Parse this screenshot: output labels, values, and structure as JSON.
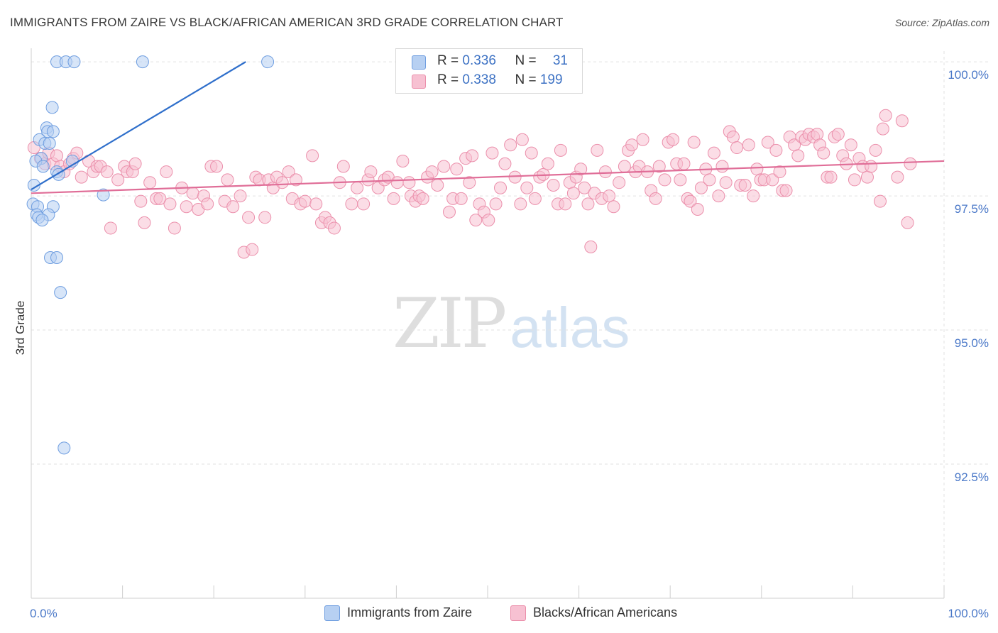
{
  "title": "IMMIGRANTS FROM ZAIRE VS BLACK/AFRICAN AMERICAN 3RD GRADE CORRELATION CHART",
  "source": "Source: ZipAtlas.com",
  "watermark": {
    "zip": "ZIP",
    "atlas": "atlas"
  },
  "colors": {
    "blue_fill": "#b7d0f2",
    "blue_stroke": "#6f9ee0",
    "blue_line": "#2f6fcb",
    "pink_fill": "#f7c1d2",
    "pink_stroke": "#eb8fab",
    "pink_line": "#e06e98",
    "tick_label": "#4a78c8",
    "grid": "#e2e2e2"
  },
  "legend": {
    "rows": [
      {
        "r_label": "R = ",
        "r_value": "0.336",
        "n_label": "N = ",
        "n_value": "31",
        "color": "blue"
      },
      {
        "r_label": "R = ",
        "r_value": "0.338",
        "n_label": "N = ",
        "n_value": "199",
        "color": "pink"
      }
    ]
  },
  "bottom_legend": {
    "series1": "Immigrants from Zaire",
    "series2": "Blacks/African Americans"
  },
  "chart_data": {
    "type": "scatter",
    "title": "IMMIGRANTS FROM ZAIRE VS BLACK/AFRICAN AMERICAN 3RD GRADE CORRELATION CHART",
    "xlabel": "",
    "ylabel": "3rd Grade",
    "xlim": [
      0,
      100
    ],
    "ylim": [
      90.0,
      100.2
    ],
    "x_tick_labels": {
      "left": "0.0%",
      "right": "100.0%"
    },
    "y_ticks": [
      {
        "value": 100.0,
        "label": "100.0%"
      },
      {
        "value": 97.5,
        "label": "97.5%"
      },
      {
        "value": 95.0,
        "label": "95.0%"
      },
      {
        "value": 92.5,
        "label": "92.5%"
      }
    ],
    "series": [
      {
        "name": "Immigrants from Zaire",
        "color": "blue",
        "trend": {
          "x": [
            0.0,
            23.5
          ],
          "y": [
            97.62,
            100.0
          ]
        },
        "points": [
          [
            2.8,
            100.0
          ],
          [
            3.8,
            100.0
          ],
          [
            4.7,
            100.0
          ],
          [
            12.2,
            100.0
          ],
          [
            25.9,
            100.0
          ],
          [
            2.3,
            99.15
          ],
          [
            1.7,
            98.77
          ],
          [
            1.8,
            98.7
          ],
          [
            2.4,
            98.7
          ],
          [
            0.9,
            98.55
          ],
          [
            1.5,
            98.48
          ],
          [
            2.0,
            98.48
          ],
          [
            1.1,
            98.2
          ],
          [
            0.5,
            98.15
          ],
          [
            4.5,
            98.15
          ],
          [
            1.3,
            98.05
          ],
          [
            2.8,
            97.95
          ],
          [
            3.0,
            97.9
          ],
          [
            0.3,
            97.7
          ],
          [
            7.9,
            97.52
          ],
          [
            0.2,
            97.35
          ],
          [
            0.7,
            97.3
          ],
          [
            2.4,
            97.3
          ],
          [
            0.6,
            97.15
          ],
          [
            1.9,
            97.15
          ],
          [
            0.8,
            97.1
          ],
          [
            1.2,
            97.05
          ],
          [
            2.1,
            96.35
          ],
          [
            2.8,
            96.35
          ],
          [
            3.2,
            95.7
          ],
          [
            3.6,
            92.8
          ]
        ]
      },
      {
        "name": "Blacks/African Americans",
        "color": "pink",
        "trend": {
          "x": [
            0.0,
            100.0
          ],
          "y": [
            97.55,
            98.15
          ]
        },
        "points": [
          [
            0.3,
            98.4
          ],
          [
            1.0,
            98.2
          ],
          [
            1.5,
            98.1
          ],
          [
            1.9,
            98.3
          ],
          [
            2.4,
            98.1
          ],
          [
            2.8,
            98.25
          ],
          [
            3.2,
            98.05
          ],
          [
            3.6,
            97.95
          ],
          [
            4.2,
            98.1
          ],
          [
            4.6,
            98.2
          ],
          [
            5.0,
            98.3
          ],
          [
            5.5,
            97.85
          ],
          [
            6.3,
            98.15
          ],
          [
            6.8,
            97.95
          ],
          [
            7.2,
            98.05
          ],
          [
            7.6,
            98.05
          ],
          [
            8.3,
            97.95
          ],
          [
            8.7,
            96.9
          ],
          [
            9.5,
            97.8
          ],
          [
            10.2,
            98.05
          ],
          [
            10.5,
            97.95
          ],
          [
            11.1,
            97.95
          ],
          [
            11.4,
            98.1
          ],
          [
            12.0,
            97.4
          ],
          [
            12.4,
            97.0
          ],
          [
            13.0,
            97.75
          ],
          [
            13.7,
            97.45
          ],
          [
            14.1,
            97.45
          ],
          [
            14.8,
            97.95
          ],
          [
            15.2,
            97.35
          ],
          [
            15.7,
            96.9
          ],
          [
            16.5,
            97.65
          ],
          [
            17.0,
            97.3
          ],
          [
            17.7,
            97.55
          ],
          [
            18.3,
            97.25
          ],
          [
            18.9,
            97.5
          ],
          [
            19.3,
            97.35
          ],
          [
            19.7,
            98.05
          ],
          [
            20.3,
            98.05
          ],
          [
            21.2,
            97.4
          ],
          [
            21.5,
            97.8
          ],
          [
            22.1,
            97.3
          ],
          [
            22.9,
            97.5
          ],
          [
            23.3,
            96.45
          ],
          [
            23.8,
            97.1
          ],
          [
            24.2,
            96.5
          ],
          [
            24.6,
            97.85
          ],
          [
            25.0,
            97.8
          ],
          [
            25.6,
            97.1
          ],
          [
            26.0,
            97.8
          ],
          [
            26.5,
            97.65
          ],
          [
            26.9,
            97.85
          ],
          [
            27.5,
            97.75
          ],
          [
            28.2,
            97.95
          ],
          [
            28.6,
            97.45
          ],
          [
            29.0,
            97.8
          ],
          [
            29.5,
            97.35
          ],
          [
            30.0,
            97.4
          ],
          [
            30.8,
            98.25
          ],
          [
            31.2,
            97.35
          ],
          [
            31.8,
            97.0
          ],
          [
            32.2,
            97.1
          ],
          [
            32.7,
            97.0
          ],
          [
            33.2,
            96.9
          ],
          [
            33.8,
            97.75
          ],
          [
            34.2,
            98.05
          ],
          [
            35.1,
            97.35
          ],
          [
            35.7,
            97.65
          ],
          [
            36.4,
            97.35
          ],
          [
            36.9,
            97.8
          ],
          [
            37.2,
            97.95
          ],
          [
            38.0,
            97.65
          ],
          [
            38.7,
            97.8
          ],
          [
            39.1,
            97.85
          ],
          [
            39.7,
            97.45
          ],
          [
            40.1,
            97.75
          ],
          [
            40.7,
            98.15
          ],
          [
            41.4,
            97.75
          ],
          [
            41.6,
            97.5
          ],
          [
            42.1,
            97.4
          ],
          [
            42.5,
            97.5
          ],
          [
            42.9,
            97.45
          ],
          [
            43.4,
            97.85
          ],
          [
            43.9,
            97.95
          ],
          [
            44.5,
            97.7
          ],
          [
            45.2,
            98.05
          ],
          [
            45.8,
            97.2
          ],
          [
            46.2,
            97.45
          ],
          [
            46.6,
            98.0
          ],
          [
            47.1,
            97.45
          ],
          [
            47.6,
            98.2
          ],
          [
            48.0,
            97.75
          ],
          [
            48.3,
            98.25
          ],
          [
            48.7,
            97.05
          ],
          [
            49.1,
            97.35
          ],
          [
            49.6,
            97.2
          ],
          [
            50.1,
            97.05
          ],
          [
            50.5,
            98.3
          ],
          [
            50.9,
            97.35
          ],
          [
            51.4,
            97.65
          ],
          [
            51.9,
            98.1
          ],
          [
            52.5,
            98.45
          ],
          [
            53.0,
            97.85
          ],
          [
            53.6,
            97.35
          ],
          [
            53.8,
            98.55
          ],
          [
            54.3,
            97.65
          ],
          [
            54.8,
            98.3
          ],
          [
            55.2,
            97.45
          ],
          [
            55.7,
            97.85
          ],
          [
            56.1,
            97.9
          ],
          [
            56.6,
            98.1
          ],
          [
            57.2,
            97.7
          ],
          [
            57.7,
            97.35
          ],
          [
            58.0,
            98.35
          ],
          [
            58.5,
            97.35
          ],
          [
            59.0,
            97.75
          ],
          [
            59.4,
            97.55
          ],
          [
            59.7,
            97.85
          ],
          [
            60.2,
            98.0
          ],
          [
            60.6,
            97.65
          ],
          [
            61.0,
            97.35
          ],
          [
            61.3,
            96.55
          ],
          [
            61.7,
            97.55
          ],
          [
            62.0,
            98.35
          ],
          [
            62.5,
            97.45
          ],
          [
            62.9,
            97.95
          ],
          [
            63.3,
            97.5
          ],
          [
            63.8,
            97.3
          ],
          [
            64.4,
            97.75
          ],
          [
            65.0,
            98.05
          ],
          [
            65.4,
            98.35
          ],
          [
            65.8,
            98.45
          ],
          [
            66.2,
            97.95
          ],
          [
            66.6,
            98.05
          ],
          [
            67.0,
            98.55
          ],
          [
            67.5,
            97.95
          ],
          [
            67.9,
            97.6
          ],
          [
            68.4,
            97.45
          ],
          [
            68.8,
            98.05
          ],
          [
            69.4,
            97.8
          ],
          [
            69.8,
            98.5
          ],
          [
            70.3,
            98.55
          ],
          [
            70.7,
            98.1
          ],
          [
            71.1,
            97.8
          ],
          [
            71.5,
            98.1
          ],
          [
            71.9,
            97.45
          ],
          [
            72.2,
            97.4
          ],
          [
            72.6,
            98.5
          ],
          [
            73.0,
            97.25
          ],
          [
            73.4,
            97.65
          ],
          [
            73.9,
            98.0
          ],
          [
            74.3,
            97.8
          ],
          [
            74.8,
            98.3
          ],
          [
            75.3,
            97.5
          ],
          [
            75.7,
            98.05
          ],
          [
            76.1,
            97.75
          ],
          [
            76.5,
            98.7
          ],
          [
            76.9,
            98.6
          ],
          [
            77.3,
            98.4
          ],
          [
            77.7,
            97.7
          ],
          [
            78.2,
            97.7
          ],
          [
            78.6,
            98.45
          ],
          [
            79.1,
            97.5
          ],
          [
            79.5,
            98.0
          ],
          [
            79.9,
            97.8
          ],
          [
            80.3,
            97.8
          ],
          [
            80.7,
            98.5
          ],
          [
            81.2,
            97.8
          ],
          [
            81.6,
            98.35
          ],
          [
            82.0,
            97.95
          ],
          [
            82.3,
            97.6
          ],
          [
            82.7,
            97.6
          ],
          [
            83.1,
            98.6
          ],
          [
            83.6,
            98.45
          ],
          [
            84.0,
            98.25
          ],
          [
            84.4,
            98.6
          ],
          [
            84.8,
            98.55
          ],
          [
            85.2,
            98.65
          ],
          [
            85.7,
            98.6
          ],
          [
            86.1,
            98.65
          ],
          [
            86.4,
            98.45
          ],
          [
            86.8,
            98.3
          ],
          [
            87.2,
            97.85
          ],
          [
            87.6,
            97.85
          ],
          [
            88.0,
            98.6
          ],
          [
            88.4,
            98.65
          ],
          [
            88.9,
            98.25
          ],
          [
            89.3,
            98.1
          ],
          [
            89.8,
            98.45
          ],
          [
            90.2,
            97.8
          ],
          [
            90.7,
            98.2
          ],
          [
            91.1,
            98.05
          ],
          [
            91.6,
            97.85
          ],
          [
            92.0,
            98.05
          ],
          [
            92.5,
            98.35
          ],
          [
            93.0,
            97.4
          ],
          [
            93.3,
            98.75
          ],
          [
            93.6,
            99.0
          ],
          [
            94.9,
            97.85
          ],
          [
            95.4,
            98.9
          ],
          [
            96.0,
            97.0
          ],
          [
            96.3,
            98.1
          ]
        ]
      }
    ]
  }
}
